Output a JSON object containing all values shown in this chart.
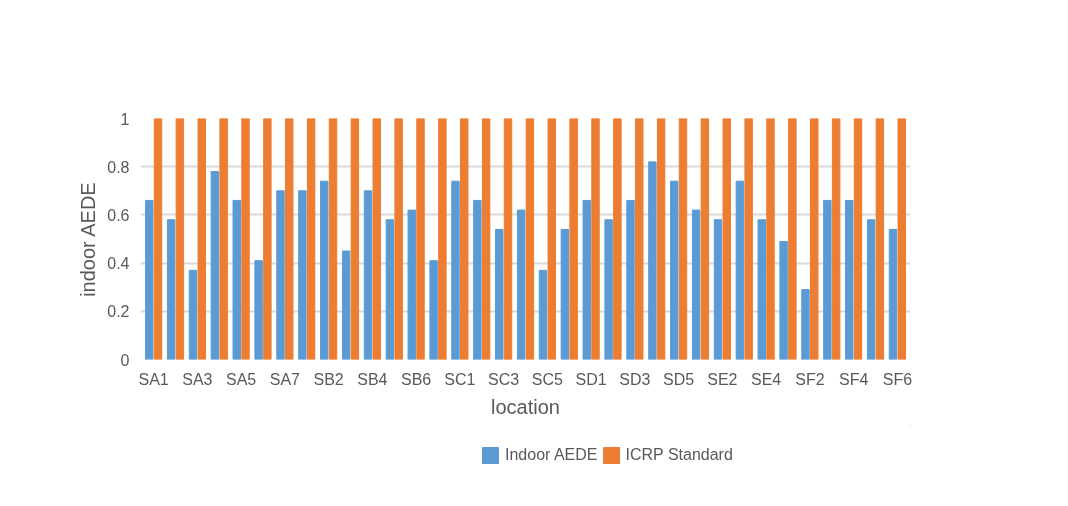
{
  "chart_data": {
    "type": "bar",
    "xlabel": "location",
    "ylabel": "indoor AEDE",
    "categories": [
      "SA1",
      null,
      "SA3",
      null,
      "SA5",
      null,
      "SA7",
      null,
      "SB2",
      null,
      "SB4",
      null,
      "SB6",
      null,
      "SC1",
      null,
      "SC3",
      null,
      "SC5",
      null,
      "SD1",
      null,
      "SD3",
      null,
      "SD5",
      null,
      "SE2",
      null,
      "SE4",
      null,
      "SF2",
      null,
      "SF4",
      null,
      "SF6"
    ],
    "series": [
      {
        "name": "Indoor AEDE",
        "color": "#5b9bd5",
        "values": [
          0.66,
          0.58,
          0.37,
          0.78,
          0.66,
          0.41,
          0.7,
          0.7,
          0.74,
          0.45,
          0.7,
          0.58,
          0.62,
          0.41,
          0.74,
          0.66,
          0.54,
          0.62,
          0.37,
          0.54,
          0.66,
          0.58,
          0.66,
          0.82,
          0.74,
          0.62,
          0.58,
          0.74,
          0.58,
          0.49,
          0.29,
          0.66,
          0.66,
          0.58,
          0.54
        ]
      },
      {
        "name": "ICRP Standard",
        "color": "#ed7d31",
        "values": [
          1,
          1,
          1,
          1,
          1,
          1,
          1,
          1,
          1,
          1,
          1,
          1,
          1,
          1,
          1,
          1,
          1,
          1,
          1,
          1,
          1,
          1,
          1,
          1,
          1,
          1,
          1,
          1,
          1,
          1,
          1,
          1,
          1,
          1,
          1
        ]
      }
    ],
    "ylim": [
      0,
      1
    ],
    "yticks": [
      0,
      0.2,
      0.4,
      0.6,
      0.8,
      1
    ],
    "grid": "y",
    "legend": "bottom"
  }
}
